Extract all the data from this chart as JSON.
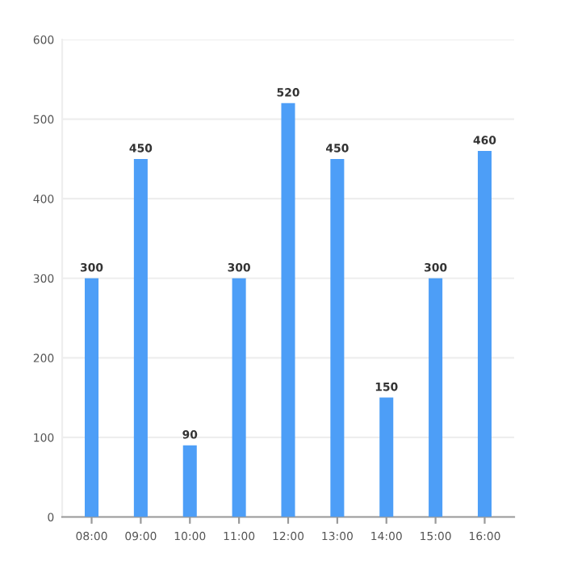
{
  "chart_data": {
    "type": "bar",
    "categories": [
      "08:00",
      "09:00",
      "10:00",
      "11:00",
      "12:00",
      "13:00",
      "14:00",
      "15:00",
      "16:00"
    ],
    "values": [
      300,
      450,
      90,
      300,
      520,
      450,
      150,
      300,
      460
    ],
    "color": "#4d9ef7",
    "ylim": [
      0,
      600
    ],
    "yticks": [
      0,
      100,
      200,
      300,
      400,
      500,
      600
    ],
    "grid": "y",
    "data_labels": true
  }
}
